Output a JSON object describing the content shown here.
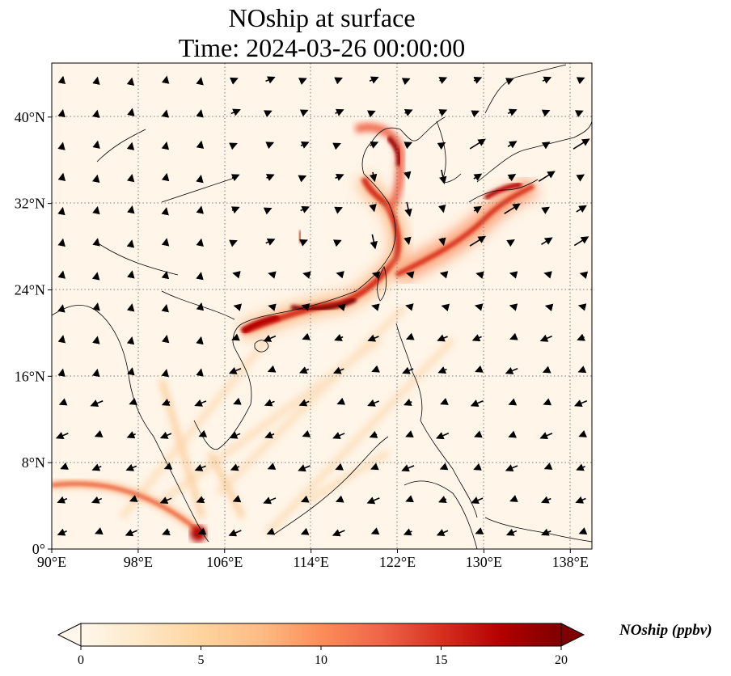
{
  "title": {
    "line1": "NOship at surface",
    "line2": "Time: 2024-03-26 00:00:00"
  },
  "map": {
    "lon_range": [
      90,
      140
    ],
    "lat_range": [
      0,
      45
    ],
    "x_ticks": [
      "90°E",
      "98°E",
      "106°E",
      "114°E",
      "122°E",
      "130°E",
      "138°E"
    ],
    "x_tick_values": [
      90,
      98,
      106,
      114,
      122,
      130,
      138
    ],
    "y_ticks": [
      "0°",
      "8°N",
      "16°N",
      "24°N",
      "32°N",
      "40°N"
    ],
    "y_tick_values": [
      0,
      8,
      16,
      24,
      32,
      40
    ],
    "gridlines": "dotted",
    "field": "NOship",
    "overlay": "wind vectors"
  },
  "colorbar": {
    "label": "NOship (ppbv)",
    "ticks": [
      "0",
      "5",
      "10",
      "15",
      "20"
    ],
    "range": [
      0,
      20
    ],
    "extend": "both",
    "colormap": "OrRd",
    "colors": [
      "#fff7ec",
      "#fee8c8",
      "#fdd49e",
      "#fdbb84",
      "#fc8d59",
      "#ef6548",
      "#d7301f",
      "#b30000",
      "#7f0000"
    ]
  }
}
